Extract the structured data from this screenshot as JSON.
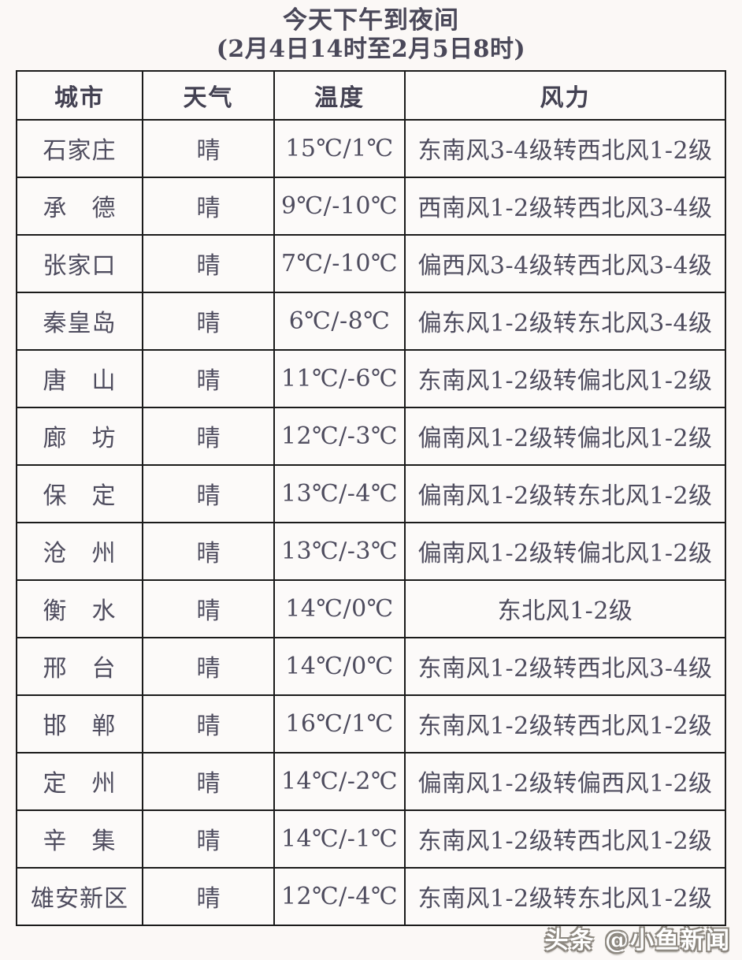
{
  "title": {
    "line1": "今天下午到夜间",
    "line2": "(2月4日14时至2月5日8时)"
  },
  "table": {
    "headers": [
      "城市",
      "天气",
      "温度",
      "风力"
    ],
    "rows": [
      {
        "city": "石家庄",
        "weather": "晴",
        "temp": "15℃/1℃",
        "wind": "东南风3-4级转西北风1-2级"
      },
      {
        "city": "承　德",
        "weather": "晴",
        "temp": "9℃/-10℃",
        "wind": "西南风1-2级转西北风3-4级"
      },
      {
        "city": "张家口",
        "weather": "晴",
        "temp": "7℃/-10℃",
        "wind": "偏西风3-4级转西北风3-4级"
      },
      {
        "city": "秦皇岛",
        "weather": "晴",
        "temp": "6℃/-8℃",
        "wind": "偏东风1-2级转东北风3-4级"
      },
      {
        "city": "唐　山",
        "weather": "晴",
        "temp": "11℃/-6℃",
        "wind": "东南风1-2级转偏北风1-2级"
      },
      {
        "city": "廊　坊",
        "weather": "晴",
        "temp": "12℃/-3℃",
        "wind": "偏南风1-2级转偏北风1-2级"
      },
      {
        "city": "保　定",
        "weather": "晴",
        "temp": "13℃/-4℃",
        "wind": "偏南风1-2级转东北风1-2级"
      },
      {
        "city": "沧　州",
        "weather": "晴",
        "temp": "13℃/-3℃",
        "wind": "偏南风1-2级转偏北风1-2级"
      },
      {
        "city": "衡　水",
        "weather": "晴",
        "temp": "14℃/0℃",
        "wind": "东北风1-2级"
      },
      {
        "city": "邢　台",
        "weather": "晴",
        "temp": "14℃/0℃",
        "wind": "东南风1-2级转西北风3-4级"
      },
      {
        "city": "邯　郸",
        "weather": "晴",
        "temp": "16℃/1℃",
        "wind": "东南风1-2级转西北风1-2级"
      },
      {
        "city": "定　州",
        "weather": "晴",
        "temp": "14℃/-2℃",
        "wind": "偏南风1-2级转偏西风1-2级"
      },
      {
        "city": "辛　集",
        "weather": "晴",
        "temp": "14℃/-1℃",
        "wind": "东南风1-2级转西北风1-2级"
      },
      {
        "city": "雄安新区",
        "weather": "晴",
        "temp": "12℃/-4℃",
        "wind": "东南风1-2级转东北风1-2级"
      }
    ]
  },
  "watermark": "头条 @小鱼新闻",
  "colors": {
    "text": "#4e4c5e",
    "title": "#4a4859",
    "temperature": "#bf2a31",
    "border": "#1b1b1b",
    "background": "#fbf8f6",
    "watermark_fill": "#ffffff",
    "watermark_outline": "#8d8880"
  }
}
